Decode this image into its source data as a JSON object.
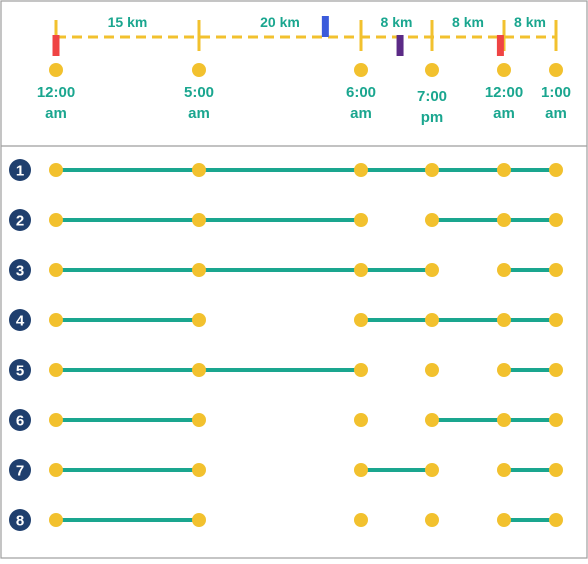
{
  "colors": {
    "dash": "#f2c12e",
    "node": "#f2c12e",
    "segment": "#1aa68f",
    "label": "#1aa68f",
    "badge": "#1f3f6e",
    "badge_text": "#ffffff",
    "border": "#9e9e9e",
    "marker_red": "#ef4444",
    "marker_blue": "#3b5bdb",
    "marker_purple": "#5b2a86"
  },
  "timeline": {
    "stops": [
      {
        "line1": "12:00",
        "line2": "am"
      },
      {
        "line1": "5:00",
        "line2": "am"
      },
      {
        "line1": "6:00",
        "line2": "am"
      },
      {
        "line1": "7:00",
        "line2": "pm"
      },
      {
        "line1": "12:00",
        "line2": "am"
      },
      {
        "line1": "1:00",
        "line2": "am"
      }
    ],
    "distances": [
      "15 km",
      "20 km",
      "8 km",
      "8 km",
      "8 km"
    ],
    "markers": [
      {
        "color_key": "marker_red",
        "position": 0.0,
        "side": "below"
      },
      {
        "color_key": "marker_blue",
        "position": 1.78,
        "side": "above"
      },
      {
        "color_key": "marker_purple",
        "position": 2.55,
        "side": "below"
      },
      {
        "color_key": "marker_red",
        "position": 3.95,
        "side": "below"
      }
    ]
  },
  "rows": [
    {
      "label": "1",
      "segments": [
        [
          0,
          1
        ],
        [
          1,
          2
        ],
        [
          2,
          3
        ],
        [
          3,
          4
        ],
        [
          4,
          5
        ]
      ]
    },
    {
      "label": "2",
      "segments": [
        [
          0,
          1
        ],
        [
          1,
          2
        ],
        [
          3,
          4
        ],
        [
          4,
          5
        ]
      ]
    },
    {
      "label": "3",
      "segments": [
        [
          0,
          1
        ],
        [
          1,
          2
        ],
        [
          2,
          3
        ],
        [
          4,
          5
        ]
      ]
    },
    {
      "label": "4",
      "segments": [
        [
          0,
          1
        ],
        [
          2,
          3
        ],
        [
          3,
          4
        ],
        [
          4,
          5
        ]
      ]
    },
    {
      "label": "5",
      "segments": [
        [
          0,
          1
        ],
        [
          1,
          2
        ],
        [
          4,
          5
        ]
      ]
    },
    {
      "label": "6",
      "segments": [
        [
          0,
          1
        ],
        [
          3,
          4
        ],
        [
          4,
          5
        ]
      ]
    },
    {
      "label": "7",
      "segments": [
        [
          0,
          1
        ],
        [
          2,
          3
        ],
        [
          4,
          5
        ]
      ]
    },
    {
      "label": "8",
      "segments": [
        [
          0,
          1
        ],
        [
          4,
          5
        ]
      ]
    }
  ]
}
